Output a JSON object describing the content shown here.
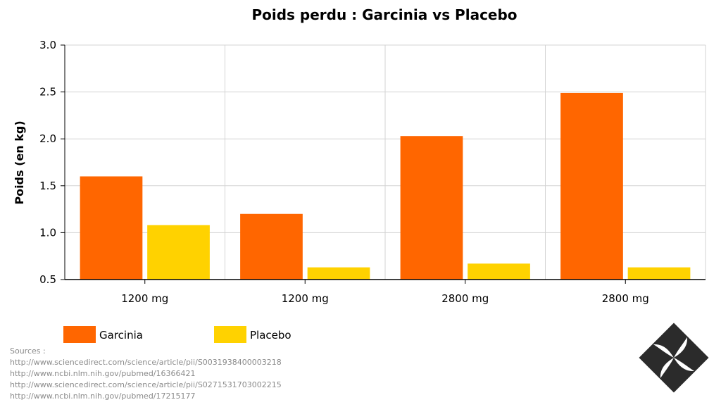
{
  "chart_data": {
    "type": "bar",
    "title": "Poids perdu : Garcinia vs Placebo",
    "ylabel": "Poids (en kg)",
    "xlabel": "",
    "categories": [
      "1200 mg",
      "1200 mg",
      "2800 mg",
      "2800 mg"
    ],
    "series": [
      {
        "name": "Garcinia",
        "color": "#ff6600",
        "values": [
          1.6,
          1.2,
          2.03,
          2.49
        ]
      },
      {
        "name": "Placebo",
        "color": "#ffd200",
        "values": [
          1.08,
          0.63,
          0.67,
          0.63
        ]
      }
    ],
    "ylim": [
      0.5,
      3.0
    ],
    "yticks": [
      "0.5",
      "1.0",
      "1.5",
      "2.0",
      "2.5",
      "3.0"
    ],
    "grid": true,
    "legend_position": "bottom-left"
  },
  "sources": {
    "heading": "Sources :",
    "links": [
      "http://www.sciencedirect.com/science/article/pii/S0031938400003218",
      "http://www.ncbi.nlm.nih.gov/pubmed/16366421",
      "http://www.sciencedirect.com/science/article/pii/S0271531703002215",
      "http://www.ncbi.nlm.nih.gov/pubmed/17215177"
    ]
  },
  "logo": {
    "icon": "pinwheel-diamond-logo",
    "color": "#2b2b2b"
  }
}
